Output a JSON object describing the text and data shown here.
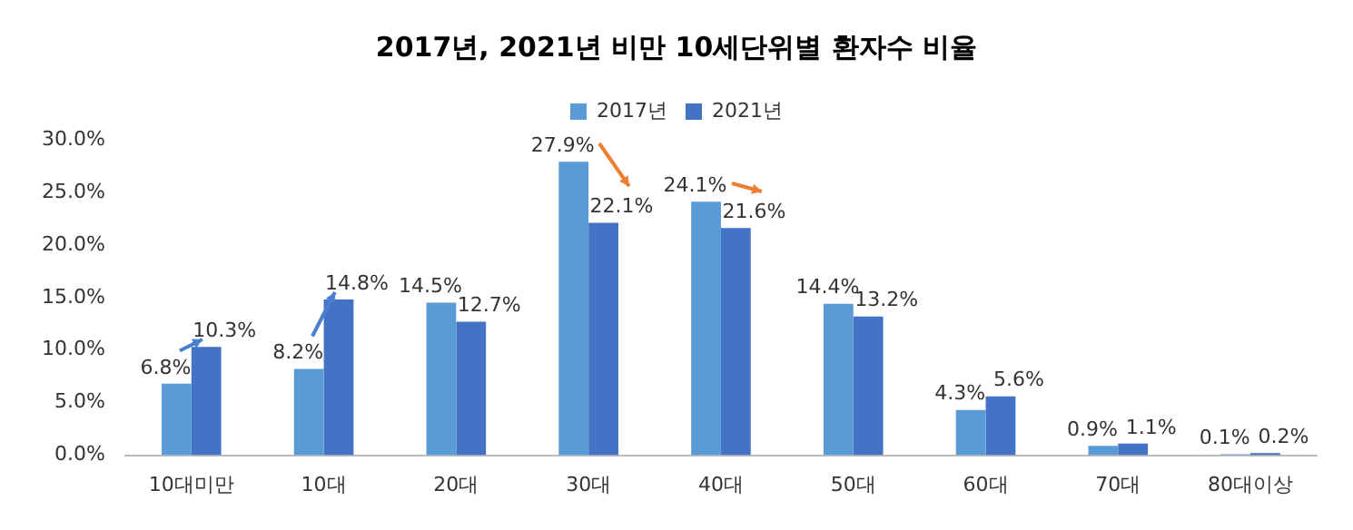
{
  "chart_data": {
    "type": "bar",
    "title": "2017년, 2021년 비만 10세단위별 환자수 비율",
    "categories": [
      "10대미만",
      "10대",
      "20대",
      "30대",
      "40대",
      "50대",
      "60대",
      "70대",
      "80대이상"
    ],
    "series": [
      {
        "name": "2017년",
        "color": "#5b9bd5",
        "values": [
          6.8,
          8.2,
          14.5,
          27.9,
          24.1,
          14.4,
          4.3,
          0.9,
          0.1
        ],
        "value_labels": [
          "6.8%",
          "8.2%",
          "14.5%",
          "27.9%",
          "24.1%",
          "14.4%",
          "4.3%",
          "0.9%",
          "0.1%"
        ]
      },
      {
        "name": "2021년",
        "color": "#4472c4",
        "values": [
          10.3,
          14.8,
          12.7,
          22.1,
          21.6,
          13.2,
          5.6,
          1.1,
          0.2
        ],
        "value_labels": [
          "10.3%",
          "14.8%",
          "12.7%",
          "22.1%",
          "21.6%",
          "13.2%",
          "5.6%",
          "1.1%",
          "0.2%"
        ]
      }
    ],
    "ylim": [
      0,
      30
    ],
    "yticks": [
      {
        "value": 0,
        "label": "0.0%"
      },
      {
        "value": 5,
        "label": "5.0%"
      },
      {
        "value": 10,
        "label": "10.0%"
      },
      {
        "value": 15,
        "label": "15.0%"
      },
      {
        "value": 20,
        "label": "20.0%"
      },
      {
        "value": 25,
        "label": "25.0%"
      },
      {
        "value": 30,
        "label": "30.0%"
      }
    ],
    "grid": false,
    "legend": "top"
  }
}
